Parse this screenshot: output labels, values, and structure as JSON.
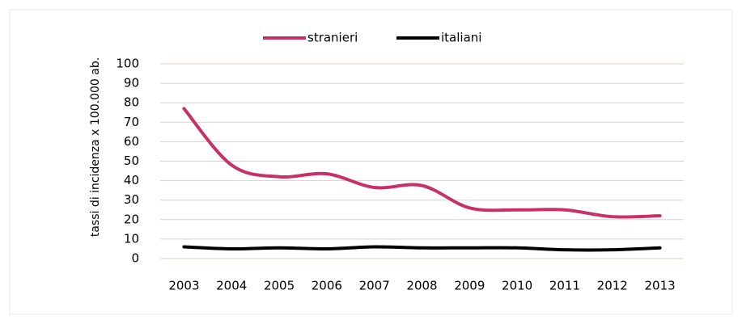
{
  "chart_data": {
    "type": "line",
    "y_axis_label": "tassi di incidenza  x 100.000 ab.",
    "categories": [
      "2003",
      "2004",
      "2005",
      "2006",
      "2007",
      "2008",
      "2009",
      "2010",
      "2011",
      "2012",
      "2013"
    ],
    "series": [
      {
        "name": "stranieri",
        "color": "#c8306a",
        "values": [
          77,
          48,
          42,
          43.5,
          36.5,
          37.5,
          26,
          25,
          25,
          21.5,
          22
        ]
      },
      {
        "name": "italiani",
        "color": "#000000",
        "values": [
          6,
          5,
          5.5,
          5,
          6,
          5.5,
          5.5,
          5.5,
          4.5,
          4.5,
          5.5
        ]
      }
    ],
    "ylim": [
      0,
      100
    ],
    "yticks": [
      0,
      10,
      20,
      30,
      40,
      50,
      60,
      70,
      80,
      90,
      100
    ],
    "grid": true,
    "legend": "top"
  }
}
